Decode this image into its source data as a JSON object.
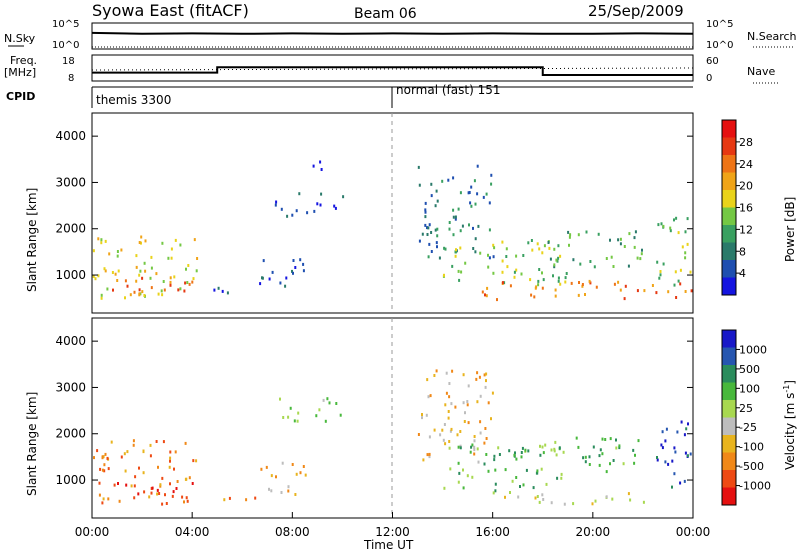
{
  "header": {
    "station": "Syowa East (fitACF)",
    "beam": "Beam 06",
    "date": "25/Sep/2009"
  },
  "colors": {
    "power_scale": [
      "#1515e0",
      "#1f4fb0",
      "#2a7a6a",
      "#39a060",
      "#74c844",
      "#e9d31a",
      "#f0a418",
      "#ee7416",
      "#e63812",
      "#e51010"
    ],
    "velocity_scale": [
      "#e51010",
      "#ee4a14",
      "#f08818",
      "#e8b41e",
      "#bdbdbd",
      "#a8d850",
      "#48b83c",
      "#2a8c5c",
      "#2656b0",
      "#1818c8"
    ]
  },
  "chart_data": [
    {
      "type": "line",
      "panel": "noise",
      "left_label_line1": "N.Sky",
      "right_label_line1": "N.Search",
      "left_ticks": [
        "10^5",
        "10^0"
      ],
      "right_ticks": [
        "10^5",
        "10^0"
      ],
      "series": [
        {
          "values_hours": [
            0,
            2,
            4,
            6,
            8,
            10,
            12,
            14,
            16,
            18,
            20,
            22,
            24
          ],
          "values": [
            3.2,
            3.0,
            3.1,
            3.0,
            3.1,
            3.0,
            3.1,
            3.0,
            3.1,
            3.0,
            3.0,
            3.1,
            3.0
          ]
        }
      ]
    },
    {
      "type": "line",
      "panel": "frequency",
      "left_label_line1": "Freq.",
      "left_label_line2": "[MHz]",
      "right_label_line1": "Nave",
      "left_ticks": [
        "18",
        "8"
      ],
      "right_ticks": [
        "60",
        "0"
      ],
      "ylim": [
        8,
        18
      ],
      "series": [
        {
          "steps": [
            {
              "x0": 0,
              "x1": 5,
              "y": 11.2
            },
            {
              "x0": 5,
              "x1": 18,
              "y": 13.3
            },
            {
              "x0": 18,
              "x1": 24,
              "y": 10.3
            }
          ]
        }
      ]
    },
    {
      "type": "table",
      "panel": "cpid",
      "label": "CPID",
      "segments": [
        {
          "start_hour": 0,
          "name": "themis 3300"
        },
        {
          "start_hour": 12,
          "name": "normal (fast) 151"
        }
      ]
    },
    {
      "type": "heatmap",
      "panel": "power",
      "ylabel": "Slant Range [km]",
      "ylim": [
        180,
        4500
      ],
      "yticks": [
        "4000",
        "3000",
        "2000",
        "1000"
      ],
      "ytick_values": [
        4000,
        3000,
        2000,
        1000
      ],
      "colorbar_label": "Power [dB]",
      "colorbar_ticks": [
        "28",
        "24",
        "20",
        "16",
        "12",
        "8",
        "4"
      ],
      "regions": [
        {
          "x": [
            0.0,
            4.2
          ],
          "y": [
            500,
            1900
          ],
          "level": 5
        },
        {
          "x": [
            0.5,
            4.0
          ],
          "y": [
            650,
            1000
          ],
          "level": 8
        },
        {
          "x": [
            4.8,
            6.5
          ],
          "y": [
            600,
            800
          ],
          "level": 1
        },
        {
          "x": [
            6.5,
            8.5
          ],
          "y": [
            700,
            1400
          ],
          "level": 1
        },
        {
          "x": [
            7.3,
            10.0
          ],
          "y": [
            2300,
            2800
          ],
          "level": 1
        },
        {
          "x": [
            8.5,
            9.5
          ],
          "y": [
            3200,
            3500
          ],
          "level": 1
        },
        {
          "x": [
            13.0,
            16.0
          ],
          "y": [
            1400,
            3400
          ],
          "level": 2
        },
        {
          "x": [
            14.0,
            19.0
          ],
          "y": [
            800,
            1800
          ],
          "level": 4
        },
        {
          "x": [
            15.5,
            24.0
          ],
          "y": [
            500,
            900
          ],
          "level": 7
        },
        {
          "x": [
            18.0,
            22.0
          ],
          "y": [
            1200,
            2000
          ],
          "level": 3
        },
        {
          "x": [
            22.5,
            24.0
          ],
          "y": [
            800,
            2300
          ],
          "level": 4
        }
      ]
    },
    {
      "type": "heatmap",
      "panel": "velocity",
      "ylabel": "Slant Range [km]",
      "ylim": [
        180,
        4500
      ],
      "yticks": [
        "4000",
        "3000",
        "2000",
        "1000"
      ],
      "ytick_values": [
        4000,
        3000,
        2000,
        1000
      ],
      "colorbar_label": "Velocity [m s",
      "colorbar_label_sup": "-1",
      "colorbar_label_end": "]",
      "colorbar_ticks": [
        "1000",
        "500",
        "100",
        "25",
        "-25",
        "-100",
        "-500",
        "-1000"
      ],
      "regions": [
        {
          "x": [
            0.0,
            4.2
          ],
          "y": [
            500,
            1900
          ],
          "level": 2
        },
        {
          "x": [
            0.5,
            4.0
          ],
          "y": [
            650,
            1000
          ],
          "level": 0
        },
        {
          "x": [
            4.8,
            6.5
          ],
          "y": [
            600,
            800
          ],
          "level": 2
        },
        {
          "x": [
            6.5,
            8.5
          ],
          "y": [
            700,
            1400
          ],
          "level": 3
        },
        {
          "x": [
            7.3,
            10.0
          ],
          "y": [
            2300,
            2800
          ],
          "level": 5
        },
        {
          "x": [
            13.0,
            16.0
          ],
          "y": [
            1400,
            3400
          ],
          "level": 3
        },
        {
          "x": [
            14.0,
            19.0
          ],
          "y": [
            800,
            1800
          ],
          "level": 6
        },
        {
          "x": [
            16.0,
            22.0
          ],
          "y": [
            500,
            800
          ],
          "level": 4
        },
        {
          "x": [
            18.0,
            22.0
          ],
          "y": [
            1200,
            2000
          ],
          "level": 6
        },
        {
          "x": [
            22.5,
            24.0
          ],
          "y": [
            800,
            2300
          ],
          "level": 8
        }
      ]
    }
  ],
  "x_axis": {
    "label": "Time UT",
    "ticks": [
      "00:00",
      "04:00",
      "08:00",
      "12:00",
      "16:00",
      "20:00",
      "00:00"
    ],
    "tick_hours": [
      0,
      4,
      8,
      12,
      16,
      20,
      24
    ]
  }
}
